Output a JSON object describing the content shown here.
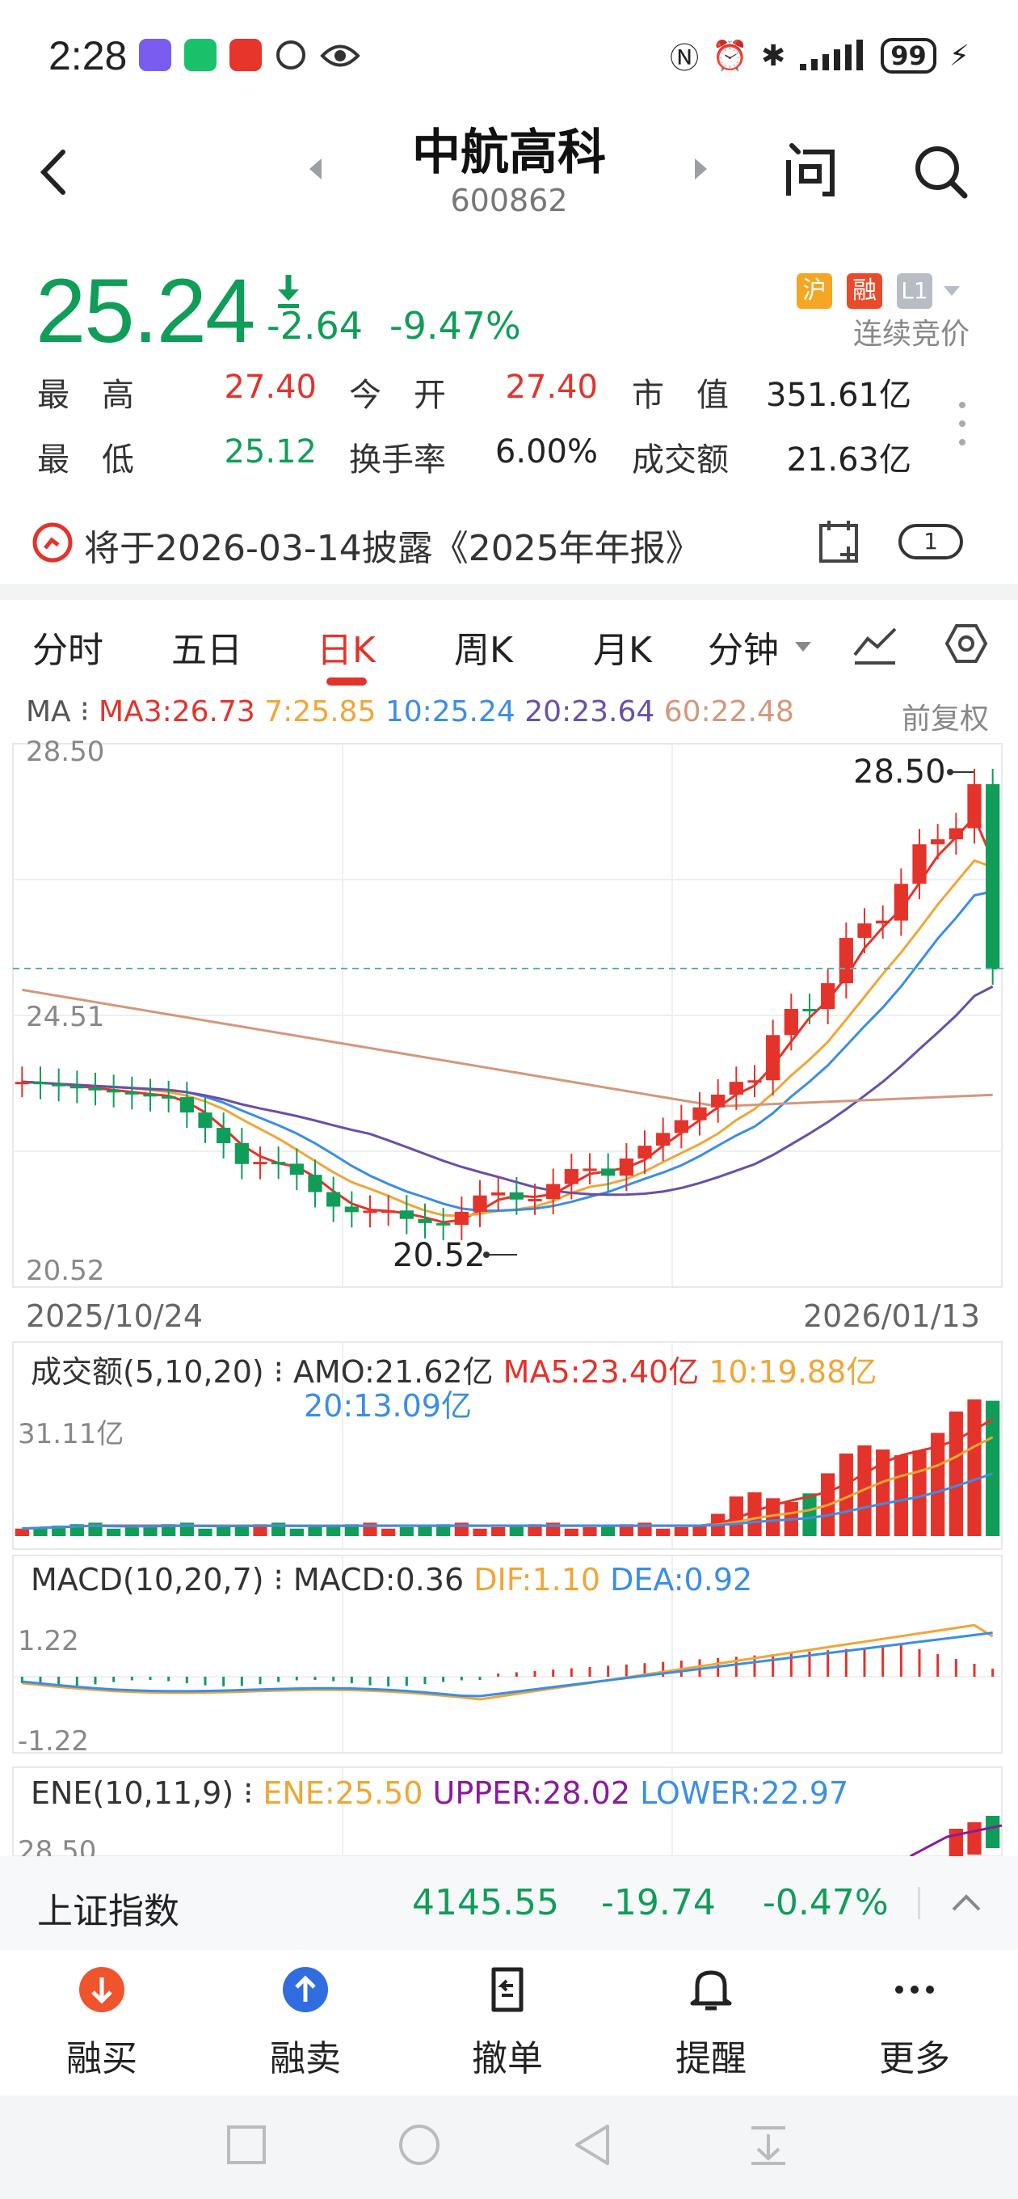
{
  "status": {
    "time": "2:28",
    "battery": "99"
  },
  "header": {
    "name": "中航高科",
    "code": "600862"
  },
  "quote": {
    "price": "25.24",
    "change": "-2.64",
    "change_pct": "-9.47%",
    "badges": [
      "沪",
      "融",
      "L1"
    ],
    "auction": "连续竞价",
    "stats": {
      "high_label": "最　高",
      "high": "27.40",
      "open_label": "今　开",
      "open": "27.40",
      "mcap_label": "市　值",
      "mcap": "351.61亿",
      "low_label": "最　低",
      "low": "25.12",
      "turnover_label": "换手率",
      "turnover": "6.00%",
      "amount_label": "成交额",
      "amount": "21.63亿"
    }
  },
  "announcement": {
    "text": "将于2026-03-14披露《2025年年报》",
    "count": "1"
  },
  "tabs": [
    "分时",
    "五日",
    "日K",
    "周K",
    "月K",
    "分钟"
  ],
  "active_tab": "日K",
  "ma_legend": {
    "prefix": "MA ⁝ ",
    "ma3": "MA3:26.73",
    "ma7": "7:25.85",
    "ma10": "10:25.24",
    "ma20": "20:23.64",
    "ma60": "60:22.48"
  },
  "adjust": "前复权",
  "kline": {
    "y_top": "28.50",
    "y_mid": "24.51",
    "y_bottom": "20.52",
    "high_mark": "28.50",
    "low_mark": "20.52",
    "date_start": "2025/10/24",
    "date_end": "2026/01/13"
  },
  "volume": {
    "title": "成交额(5,10,20) ⁝ ",
    "amo": "AMO:21.62亿",
    "ma5": "MA5:23.40亿",
    "ma10": "10:19.88亿",
    "ma20": "20:13.09亿",
    "y_max": "31.11亿"
  },
  "macd": {
    "title": "MACD(10,20,7) ⁝ ",
    "macd": "MACD:0.36",
    "dif": "DIF:1.10",
    "dea": "DEA:0.92",
    "y_top": "1.22",
    "y_bottom": "-1.22"
  },
  "ene": {
    "title": "ENE(10,11,9) ⁝ ",
    "ene": "ENE:25.50",
    "upper": "UPPER:28.02",
    "lower": "LOWER:22.97",
    "y_top": "28.50"
  },
  "index": {
    "name": "上证指数",
    "value": "4145.55",
    "change": "-19.74",
    "change_pct": "-0.47%"
  },
  "actions": [
    "融买",
    "融卖",
    "撤单",
    "提醒",
    "更多"
  ],
  "colors": {
    "up": "#e4332a",
    "down": "#0f9d58",
    "ma3": "#e4332a",
    "ma7": "#f0a636",
    "ma10": "#3a8ee6",
    "ma20": "#6a4fa8",
    "ma60": "#d4977a"
  }
}
